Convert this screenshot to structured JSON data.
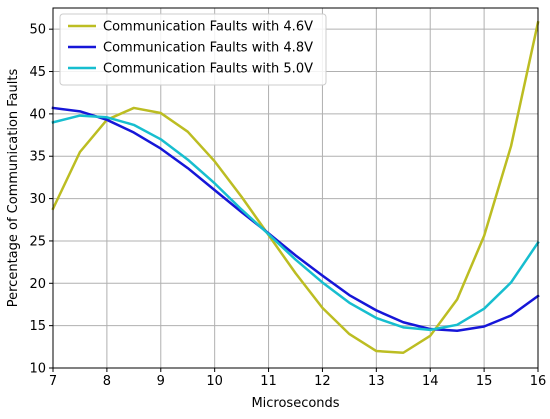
{
  "chart_data": {
    "type": "line",
    "title": "",
    "xlabel": "Microseconds",
    "ylabel": "Percentage of Communication Faults",
    "xlim": [
      7,
      16
    ],
    "ylim": [
      10,
      52.5
    ],
    "xticks": [
      7,
      8,
      9,
      10,
      11,
      12,
      13,
      14,
      15,
      16
    ],
    "yticks": [
      10,
      15,
      20,
      25,
      30,
      35,
      40,
      45,
      50
    ],
    "grid": true,
    "legend_position": "top-left",
    "x": [
      7,
      7.5,
      8,
      8.5,
      9,
      9.5,
      10,
      10.5,
      11,
      11.5,
      12,
      12.5,
      13,
      13.5,
      14,
      14.5,
      15,
      15.5,
      16
    ],
    "series": [
      {
        "name": "Communication Faults with 4.6V",
        "color": "#bcbd22",
        "values": [
          28.8,
          35.5,
          39.3,
          40.7,
          40.1,
          37.9,
          34.4,
          30.2,
          25.7,
          21.2,
          17.1,
          14.0,
          12.0,
          11.8,
          13.8,
          18.1,
          25.6,
          36.2,
          50.8
        ]
      },
      {
        "name": "Communication Faults with 4.8V",
        "color": "#1616d8",
        "values": [
          40.7,
          40.3,
          39.3,
          37.8,
          35.9,
          33.6,
          31.0,
          28.4,
          25.9,
          23.3,
          20.9,
          18.6,
          16.8,
          15.4,
          14.6,
          14.4,
          14.9,
          16.2,
          18.5
        ]
      },
      {
        "name": "Communication Faults with 5.0V",
        "color": "#17becf",
        "values": [
          39.0,
          39.8,
          39.6,
          38.7,
          37.0,
          34.6,
          31.8,
          28.7,
          25.8,
          22.8,
          20.1,
          17.7,
          15.9,
          14.8,
          14.5,
          15.1,
          17.0,
          20.1,
          24.8
        ]
      }
    ]
  }
}
